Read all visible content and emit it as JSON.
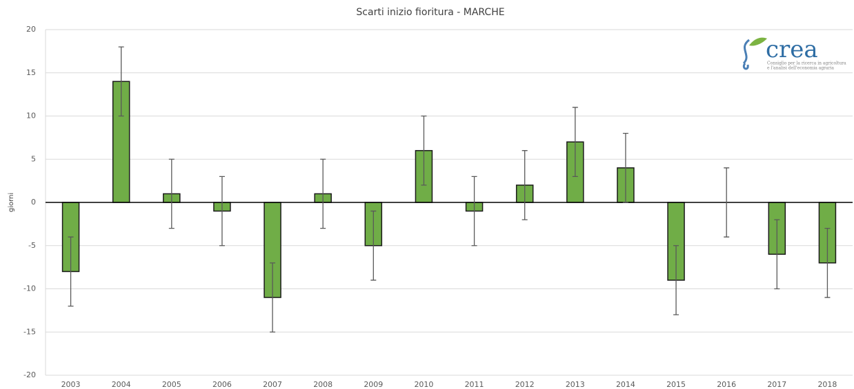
{
  "chart_data": {
    "type": "bar",
    "title": "Scarti inizio fioritura - MARCHE",
    "y_label": "giorni",
    "categories": [
      "2003",
      "2004",
      "2005",
      "2006",
      "2007",
      "2008",
      "2009",
      "2010",
      "2011",
      "2012",
      "2013",
      "2014",
      "2015",
      "2016",
      "2017",
      "2018"
    ],
    "values": [
      -8,
      14,
      1,
      -1,
      -11,
      1,
      -5,
      6,
      -1,
      2,
      7,
      4,
      -9,
      0,
      -6,
      -7
    ],
    "errors": [
      4,
      4,
      4,
      4,
      4,
      4,
      4,
      4,
      4,
      4,
      4,
      4,
      4,
      4,
      4,
      4
    ],
    "color": "#70ad47",
    "error_color": "#595959",
    "ylim": [
      -20,
      20
    ],
    "yticks": [
      -20,
      -15,
      -10,
      -5,
      0,
      5,
      10,
      15,
      20
    ],
    "grid": true,
    "logo": {
      "name": "crea",
      "tagline": [
        "Consiglio per la ricerca in agricoltura",
        "e l'analisi dell'economia agraria"
      ]
    }
  }
}
